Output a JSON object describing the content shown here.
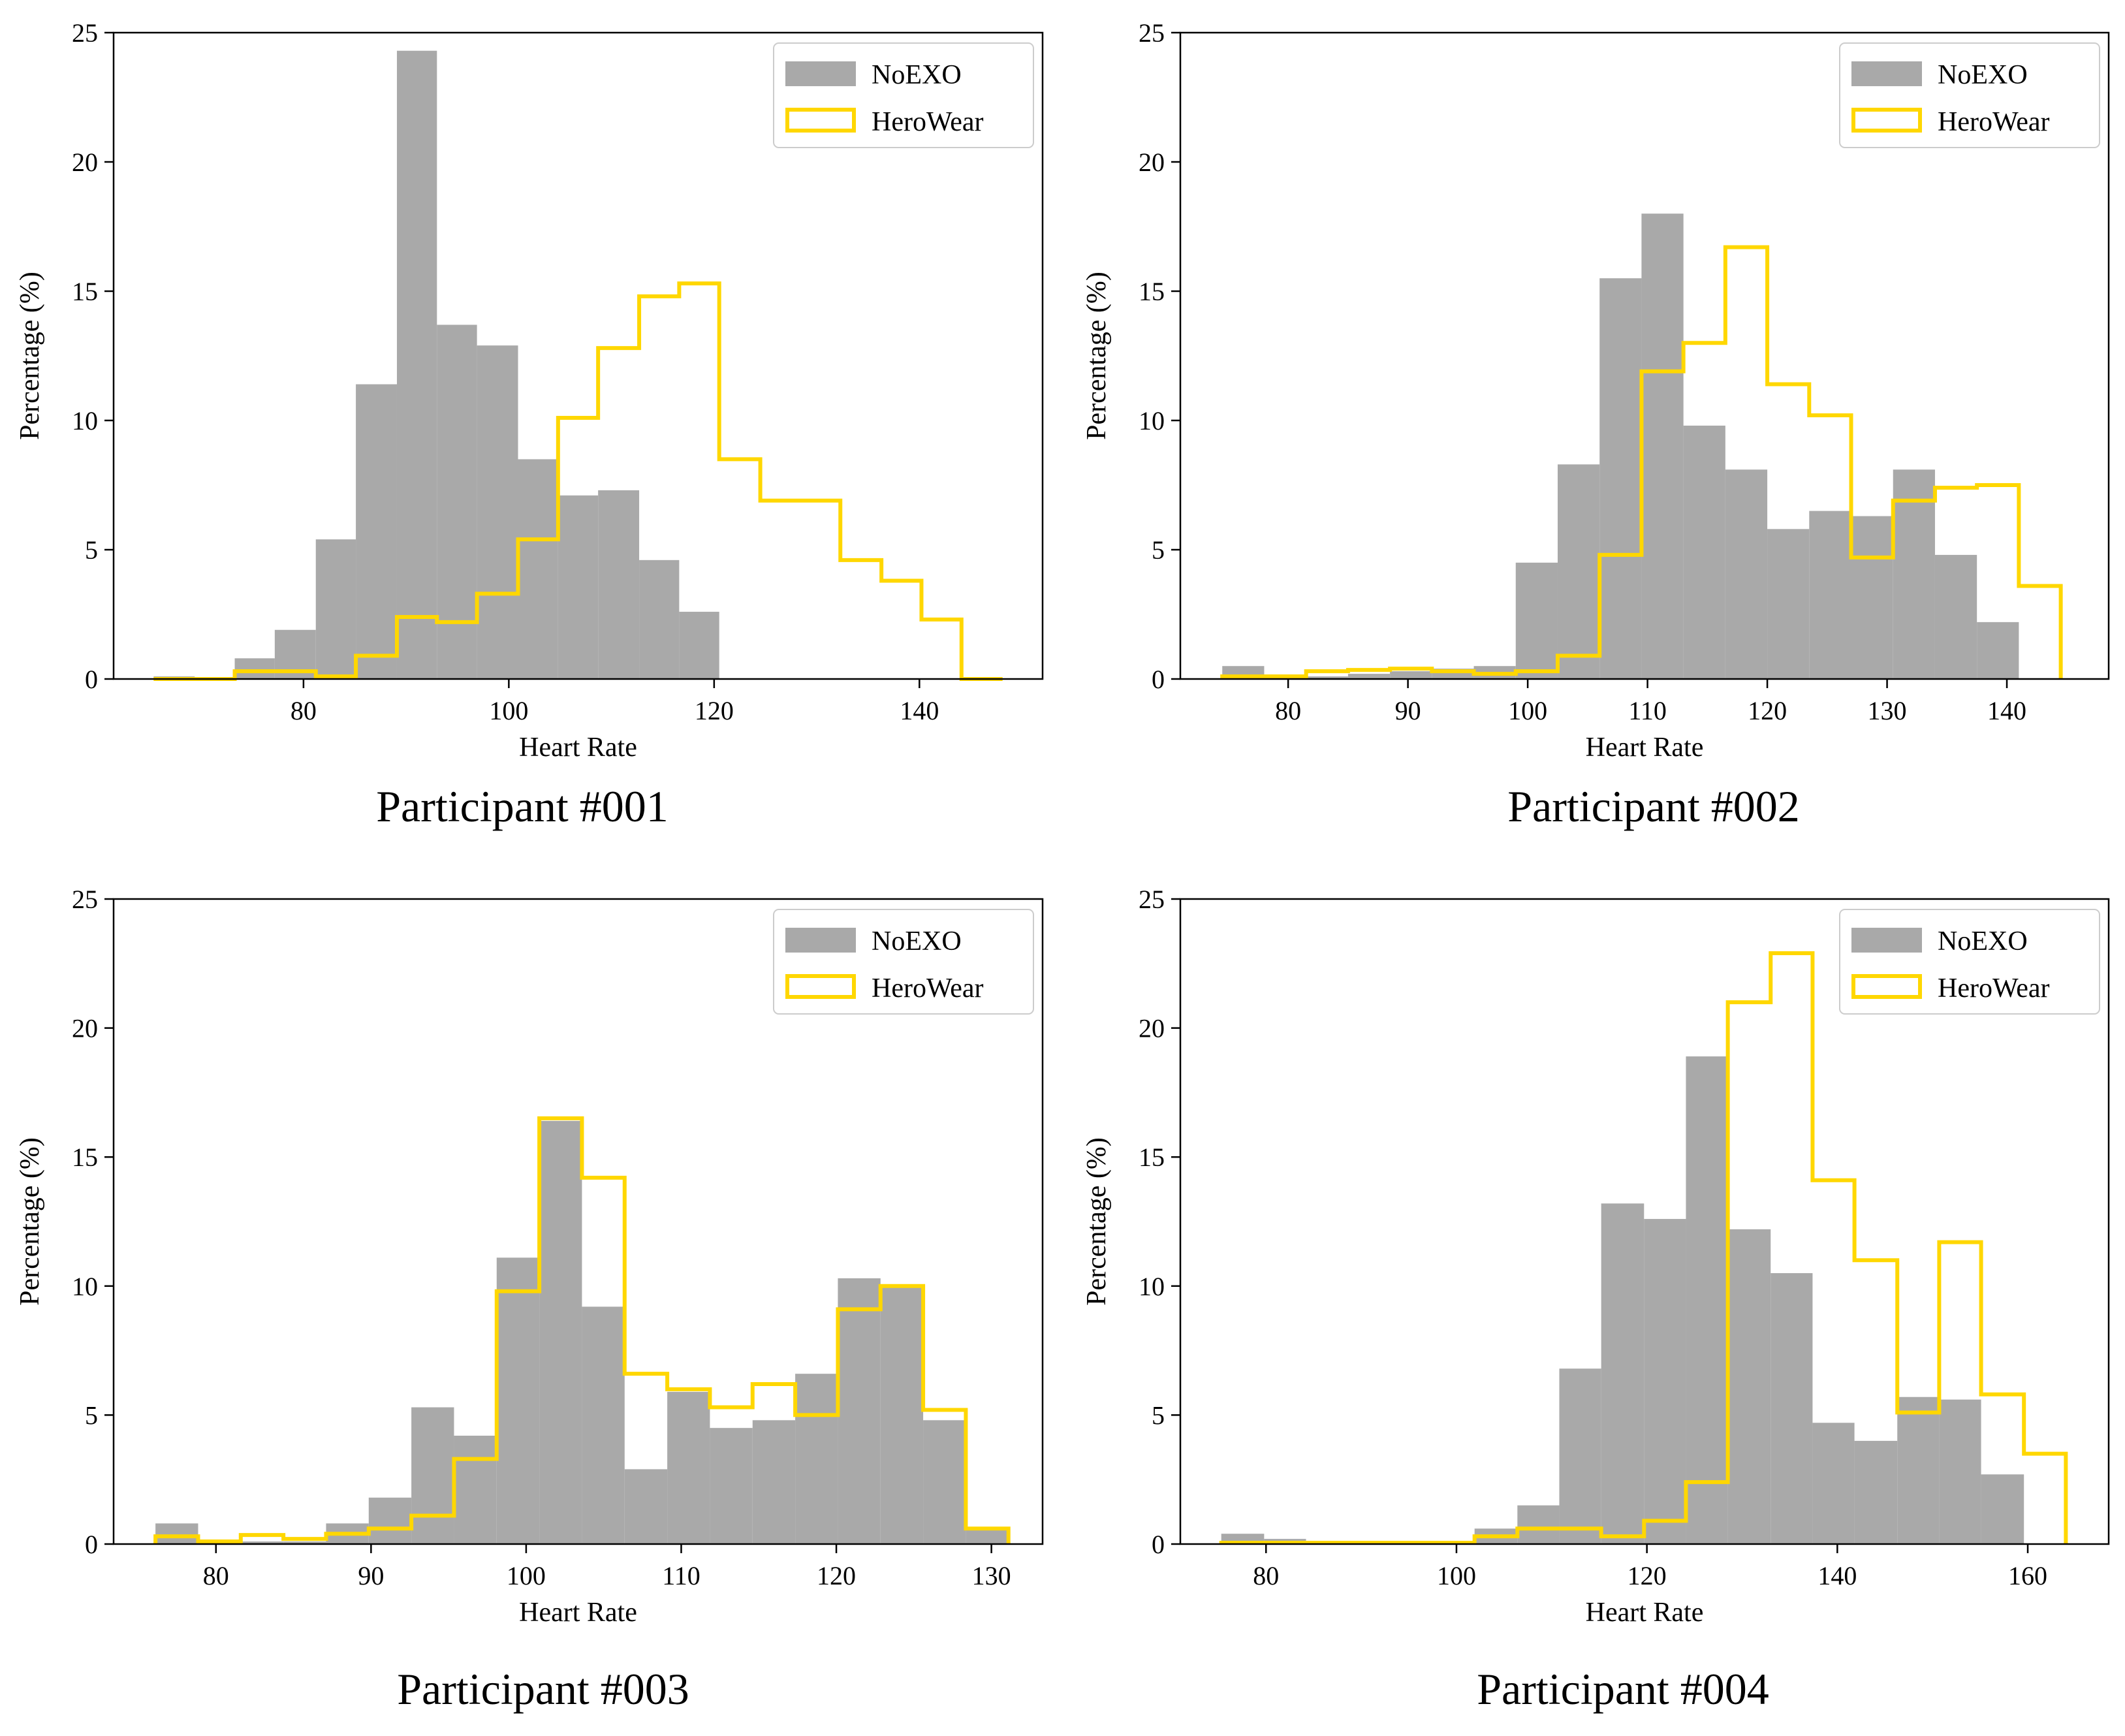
{
  "colors": {
    "noexo_fill": "#a9a9a9",
    "herowear_line": "#ffd700"
  },
  "chart_data": [
    {
      "type": "histogram",
      "caption": "Participant #001",
      "xlabel": "Heart Rate",
      "ylabel": "Percentage (%)",
      "xlim": [
        61.5,
        152
      ],
      "ylim": [
        0,
        25
      ],
      "xticks": [
        80,
        100,
        120,
        140
      ],
      "yticks": [
        0,
        5,
        10,
        15,
        20,
        25
      ],
      "legend": {
        "position": "top-right"
      },
      "series": [
        {
          "name": "NoEXO",
          "style": "filled",
          "bins": [
            65.4,
            69.4,
            73.3,
            77.2,
            81.2,
            85.1,
            89.1,
            93,
            96.9,
            100.9,
            104.8,
            108.7,
            112.7,
            116.6,
            120.5,
            124.5
          ],
          "values": [
            0.1,
            0.05,
            0.8,
            1.9,
            5.4,
            11.4,
            24.3,
            13.7,
            12.9,
            8.5,
            7.1,
            7.3,
            4.6,
            2.6,
            0
          ]
        },
        {
          "name": "HeroWear",
          "style": "step",
          "bins": [
            65.4,
            69.4,
            73.3,
            77.2,
            81.2,
            85.1,
            89.1,
            93,
            96.9,
            100.9,
            104.8,
            108.7,
            112.7,
            116.6,
            120.5,
            124.5,
            128.4,
            132.3,
            136.3,
            140.2,
            144.1,
            148.1
          ],
          "values": [
            0,
            0,
            0.3,
            0.3,
            0.1,
            0.9,
            2.4,
            2.2,
            3.3,
            5.4,
            10.1,
            12.8,
            14.8,
            15.3,
            8.5,
            6.9,
            6.9,
            4.6,
            3.8,
            2.3,
            0
          ]
        }
      ]
    },
    {
      "type": "histogram",
      "caption": "Participant #002",
      "xlabel": "Heart Rate",
      "ylabel": "Percentage (%)",
      "xlim": [
        71,
        148.5
      ],
      "ylim": [
        0,
        25
      ],
      "xticks": [
        80,
        90,
        100,
        110,
        120,
        130,
        140
      ],
      "yticks": [
        0,
        5,
        10,
        15,
        20,
        25
      ],
      "legend": {
        "position": "top-right"
      },
      "series": [
        {
          "name": "NoEXO",
          "style": "filled",
          "bins": [
            74.5,
            78,
            81.5,
            85,
            88.5,
            92,
            95.5,
            99,
            102.5,
            106,
            109.5,
            113,
            116.5,
            120,
            123.5,
            127,
            130.5,
            134,
            137.5,
            141
          ],
          "values": [
            0.5,
            0.1,
            0.1,
            0.2,
            0.3,
            0.4,
            0.5,
            4.5,
            8.3,
            15.5,
            18,
            9.8,
            8.1,
            5.8,
            6.5,
            6.3,
            8.1,
            4.8,
            2.2
          ]
        },
        {
          "name": "HeroWear",
          "style": "step",
          "bins": [
            74.5,
            78,
            81.5,
            85,
            88.5,
            92,
            95.5,
            99,
            102.5,
            106,
            109.5,
            113,
            116.5,
            120,
            123.5,
            127,
            130.5,
            134,
            137.5,
            141,
            144.5
          ],
          "values": [
            0.1,
            0.1,
            0.3,
            0.35,
            0.4,
            0.3,
            0.2,
            0.3,
            0.9,
            4.8,
            11.9,
            13,
            16.7,
            11.4,
            10.2,
            4.7,
            6.9,
            7.4,
            7.5,
            3.6
          ]
        }
      ]
    },
    {
      "type": "histogram",
      "caption": "Participant #003",
      "xlabel": "Heart Rate",
      "ylabel": "Percentage (%)",
      "xlim": [
        73.4,
        133.3
      ],
      "ylim": [
        0,
        25
      ],
      "xticks": [
        80,
        90,
        100,
        110,
        120,
        130
      ],
      "yticks": [
        0,
        5,
        10,
        15,
        20,
        25
      ],
      "legend": {
        "position": "top-right"
      },
      "series": [
        {
          "name": "NoEXO",
          "style": "filled",
          "bins": [
            76.1,
            78.85,
            81.6,
            84.35,
            87.1,
            89.85,
            92.6,
            95.35,
            98.1,
            100.85,
            103.6,
            106.35,
            109.1,
            111.85,
            114.6,
            117.35,
            120.1,
            122.85,
            125.6,
            128.35,
            131.1
          ],
          "values": [
            0.8,
            0.1,
            0.1,
            0.1,
            0.8,
            1.8,
            5.3,
            4.2,
            11.1,
            16.4,
            9.2,
            2.9,
            5.9,
            4.5,
            4.8,
            6.6,
            10.3,
            10,
            4.8,
            0.6
          ]
        },
        {
          "name": "HeroWear",
          "style": "step",
          "bins": [
            76.1,
            78.85,
            81.6,
            84.35,
            87.1,
            89.85,
            92.6,
            95.35,
            98.1,
            100.85,
            103.6,
            106.35,
            109.1,
            111.85,
            114.6,
            117.35,
            120.1,
            122.85,
            125.6,
            128.35,
            131.1
          ],
          "values": [
            0.3,
            0.1,
            0.35,
            0.2,
            0.4,
            0.6,
            1.1,
            3.3,
            9.8,
            16.5,
            14.2,
            6.6,
            6,
            5.3,
            6.2,
            5,
            9.1,
            10,
            5.2,
            0.6
          ]
        }
      ]
    },
    {
      "type": "histogram",
      "caption": "Participant #004",
      "xlabel": "Heart Rate",
      "ylabel": "Percentage (%)",
      "xlim": [
        71,
        168.5
      ],
      "ylim": [
        0,
        25
      ],
      "xticks": [
        80,
        100,
        120,
        140,
        160
      ],
      "yticks": [
        0,
        5,
        10,
        15,
        20,
        25
      ],
      "legend": {
        "position": "top-right"
      },
      "series": [
        {
          "name": "NoEXO",
          "style": "filled",
          "bins": [
            75.3,
            79.8,
            84.2,
            88.6,
            93.1,
            97.5,
            101.9,
            106.4,
            110.8,
            115.2,
            119.7,
            124.1,
            128.5,
            133,
            137.4,
            141.8,
            146.3,
            150.7,
            155.1,
            159.6
          ],
          "values": [
            0.4,
            0.2,
            0.1,
            0.1,
            0.1,
            0.1,
            0.6,
            1.5,
            6.8,
            13.2,
            12.6,
            18.9,
            12.2,
            10.5,
            4.7,
            4,
            5.7,
            5.6,
            2.7
          ]
        },
        {
          "name": "HeroWear",
          "style": "step",
          "bins": [
            75.3,
            79.8,
            84.2,
            88.6,
            93.1,
            97.5,
            101.9,
            106.4,
            110.8,
            115.2,
            119.7,
            124.1,
            128.5,
            133,
            137.4,
            141.8,
            146.3,
            150.7,
            155.1,
            159.6,
            164
          ],
          "values": [
            0.05,
            0.05,
            0.05,
            0.05,
            0.05,
            0.05,
            0.3,
            0.6,
            0.6,
            0.3,
            0.9,
            2.4,
            21,
            22.9,
            14.1,
            11,
            5.1,
            11.7,
            5.8,
            3.5
          ]
        }
      ]
    }
  ]
}
